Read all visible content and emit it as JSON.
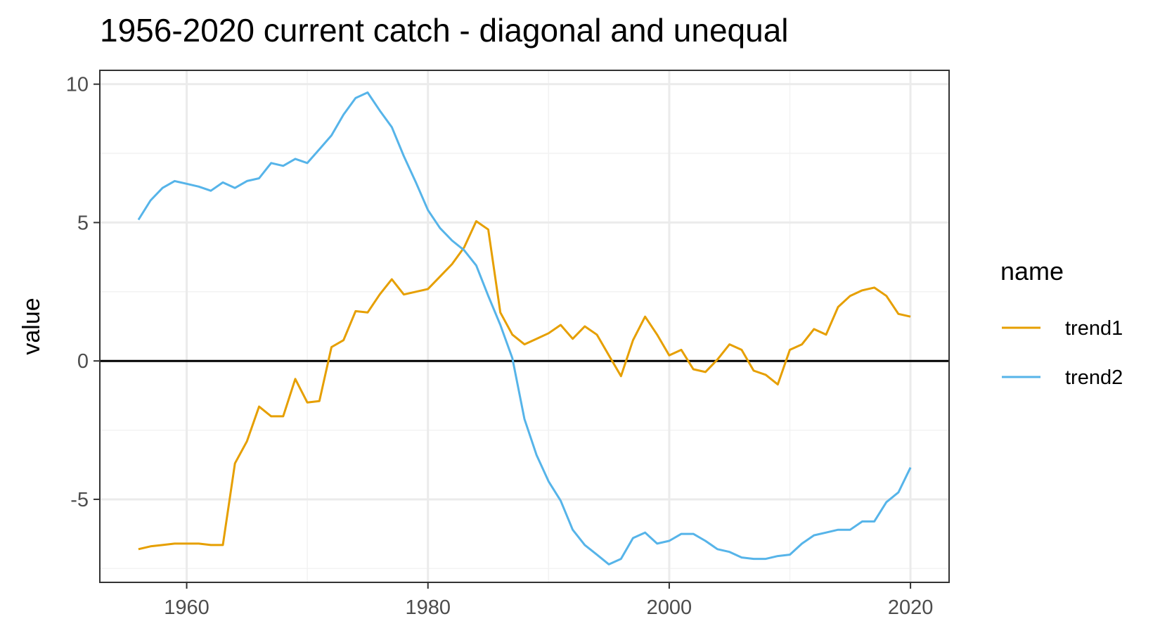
{
  "chart_data": {
    "type": "line",
    "title": "1956-2020 current catch - diagonal and unequal",
    "xlabel": "",
    "ylabel": "value",
    "xlim": [
      1952.8,
      2023.2
    ],
    "ylim": [
      -8.0,
      10.5
    ],
    "xticks": [
      1960,
      1980,
      2000,
      2020
    ],
    "yticks": [
      -5,
      0,
      5,
      10
    ],
    "grid": true,
    "hline": 0,
    "legend_title": "name",
    "legend_position": "right",
    "x": [
      1956,
      1957,
      1958,
      1959,
      1960,
      1961,
      1962,
      1963,
      1964,
      1965,
      1966,
      1967,
      1968,
      1969,
      1970,
      1971,
      1972,
      1973,
      1974,
      1975,
      1976,
      1977,
      1978,
      1979,
      1980,
      1981,
      1982,
      1983,
      1984,
      1985,
      1986,
      1987,
      1988,
      1989,
      1990,
      1991,
      1992,
      1993,
      1994,
      1995,
      1996,
      1997,
      1998,
      1999,
      2000,
      2001,
      2002,
      2003,
      2004,
      2005,
      2006,
      2007,
      2008,
      2009,
      2010,
      2011,
      2012,
      2013,
      2014,
      2015,
      2016,
      2017,
      2018,
      2019,
      2020
    ],
    "series": [
      {
        "name": "trend1",
        "color": "#E69F00",
        "values": [
          -6.8,
          -6.7,
          -6.65,
          -6.6,
          -6.6,
          -6.6,
          -6.65,
          -6.65,
          -3.7,
          -2.9,
          -1.65,
          -2.0,
          -2.0,
          -0.65,
          -1.5,
          -1.45,
          0.5,
          0.75,
          1.8,
          1.75,
          2.4,
          2.95,
          2.4,
          2.5,
          2.6,
          3.05,
          3.5,
          4.1,
          5.05,
          4.75,
          1.75,
          0.95,
          0.6,
          0.8,
          1.0,
          1.3,
          0.8,
          1.25,
          0.95,
          0.2,
          -0.55,
          0.75,
          1.6,
          0.95,
          0.2,
          0.4,
          -0.3,
          -0.4,
          0.05,
          0.6,
          0.4,
          -0.35,
          -0.5,
          -0.85,
          0.4,
          0.6,
          1.15,
          0.95,
          1.95,
          2.35,
          2.55,
          2.65,
          2.35,
          1.7,
          1.6
        ]
      },
      {
        "name": "trend2",
        "color": "#56B4E9",
        "values": [
          5.1,
          5.8,
          6.25,
          6.5,
          6.4,
          6.3,
          6.15,
          6.45,
          6.25,
          6.5,
          6.6,
          7.15,
          7.05,
          7.3,
          7.15,
          7.65,
          8.15,
          8.9,
          9.5,
          9.7,
          9.05,
          8.45,
          7.4,
          6.45,
          5.45,
          4.8,
          4.35,
          4.0,
          3.45,
          2.35,
          1.3,
          0.1,
          -2.1,
          -3.4,
          -4.35,
          -5.05,
          -6.1,
          -6.65,
          -7.0,
          -7.35,
          -7.15,
          -6.4,
          -6.2,
          -6.6,
          -6.5,
          -6.25,
          -6.25,
          -6.5,
          -6.8,
          -6.9,
          -7.1,
          -7.15,
          -7.15,
          -7.05,
          -7.0,
          -6.6,
          -6.3,
          -6.2,
          -6.1,
          -6.1,
          -5.8,
          -5.8,
          -5.1,
          -4.75,
          -3.85
        ]
      }
    ]
  }
}
